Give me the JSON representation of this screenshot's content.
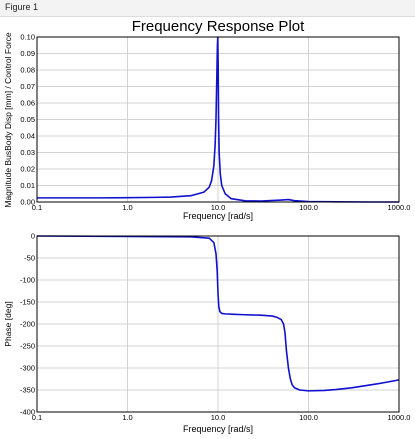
{
  "window": {
    "title": "Figure 1"
  },
  "colors": {
    "line": "#1010d0",
    "grid": "#d3d3d3",
    "axis": "#000000"
  },
  "chart_data": [
    {
      "type": "line",
      "title": "Frequency Response Plot",
      "xlabel": "Frequency [rad/s]",
      "ylabel": "Magnitude BusBody Disp [mm] / Control Force",
      "xscale": "log",
      "xlim": [
        0.1,
        1000.0
      ],
      "ylim": [
        0.0,
        0.1
      ],
      "xticks": [
        "0.1",
        "1.0",
        "10.0",
        "100.0",
        "1000.0"
      ],
      "yticks": [
        "0.00",
        "0.01",
        "0.02",
        "0.03",
        "0.04",
        "0.05",
        "0.06",
        "0.07",
        "0.08",
        "0.09",
        "0.10"
      ],
      "grid": true,
      "series": [
        {
          "x": [
            0.1,
            0.5,
            1.0,
            2.0,
            3.0,
            5.0,
            7.0,
            8.0,
            8.5,
            9.0,
            9.3,
            9.5,
            9.7,
            9.85,
            9.95,
            10.05,
            10.15,
            10.3,
            10.6,
            11.0,
            12.0,
            14.0,
            20.0,
            30.0,
            50.0,
            60.0,
            70.0,
            100.0,
            200.0,
            500.0,
            1000.0
          ],
          "y": [
            0.0025,
            0.0025,
            0.0026,
            0.0028,
            0.003,
            0.0038,
            0.006,
            0.009,
            0.013,
            0.022,
            0.035,
            0.05,
            0.075,
            0.095,
            0.1,
            0.08,
            0.05,
            0.03,
            0.017,
            0.01,
            0.005,
            0.002,
            0.0007,
            0.0006,
            0.0012,
            0.0015,
            0.0008,
            0.0003,
            0.0001,
            0.0,
            0.0
          ]
        }
      ]
    },
    {
      "type": "line",
      "title": "",
      "xlabel": "Frequency [rad/s]",
      "ylabel": "Phase [deg]",
      "xscale": "log",
      "xlim": [
        0.1,
        1000.0
      ],
      "ylim": [
        -400,
        0
      ],
      "xticks": [
        "0.1",
        "1.0",
        "10.0",
        "100.0",
        "1000.0"
      ],
      "yticks": [
        "0",
        "-50",
        "-100",
        "-150",
        "-200",
        "-250",
        "-300",
        "-350",
        "-400"
      ],
      "grid": true,
      "series": [
        {
          "x": [
            0.1,
            1.0,
            5.0,
            8.0,
            9.0,
            9.5,
            9.8,
            10.0,
            10.2,
            10.5,
            11.0,
            12.0,
            15.0,
            20.0,
            30.0,
            40.0,
            45.0,
            50.0,
            53.0,
            55.0,
            57.0,
            60.0,
            63.0,
            66.0,
            70.0,
            80.0,
            100.0,
            150.0,
            200.0,
            300.0,
            500.0,
            700.0,
            1000.0
          ],
          "y": [
            0,
            -1,
            -2,
            -5,
            -15,
            -40,
            -80,
            -130,
            -160,
            -172,
            -176,
            -177,
            -178,
            -179,
            -180,
            -182,
            -185,
            -190,
            -200,
            -220,
            -260,
            -300,
            -325,
            -338,
            -345,
            -350,
            -352,
            -351,
            -349,
            -345,
            -338,
            -333,
            -327
          ]
        }
      ]
    }
  ]
}
